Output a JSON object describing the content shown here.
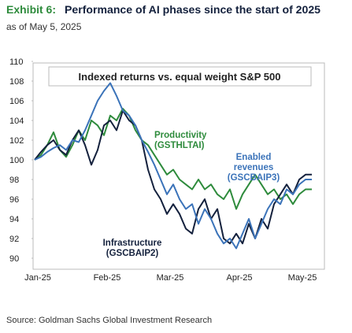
{
  "chart_data": {
    "type": "line",
    "exhibit": "Exhibit 6:",
    "title": "Performance of AI phases since the start of 2025",
    "subtitle": "as of May 5, 2025",
    "inner_title": "Indexed returns vs. equal weight S&P 500",
    "source": "Source: Goldman Sachs Global Investment Research",
    "categories": [
      "Jan-25",
      null,
      null,
      null,
      null,
      null,
      null,
      null,
      null,
      null,
      null,
      "Feb-25",
      null,
      null,
      null,
      null,
      null,
      null,
      null,
      null,
      null,
      "Mar-25",
      null,
      null,
      null,
      null,
      null,
      null,
      null,
      null,
      null,
      null,
      "Apr-25",
      null,
      null,
      null,
      null,
      null,
      null,
      null,
      null,
      null,
      "May-25",
      null,
      null
    ],
    "ylim": [
      90,
      110
    ],
    "yticks": [
      90,
      92,
      94,
      96,
      98,
      100,
      102,
      104,
      106,
      108,
      110
    ],
    "series": [
      {
        "label": [
          "Productivity",
          "(GSTHLTAI)"
        ],
        "color": "#2e8b3c",
        "values": [
          100,
          100.5,
          101.5,
          102.8,
          101,
          100.3,
          101.5,
          103,
          102,
          104,
          103.5,
          102.5,
          104.5,
          104,
          105.2,
          104.5,
          103,
          102,
          101.5,
          100.5,
          99.5,
          98.5,
          99,
          98,
          97.5,
          97,
          98,
          97,
          97.5,
          96.5,
          96,
          97,
          95,
          96.5,
          97.5,
          98.5,
          97.5,
          96.5,
          97,
          96,
          96.5,
          95.5,
          96.5,
          97,
          97
        ]
      },
      {
        "label": [
          "Infrastructure",
          "(GSCBAIP2)"
        ],
        "color": "#14213d",
        "values": [
          100,
          100.8,
          101.5,
          102,
          101,
          100.5,
          102,
          103,
          101.5,
          99.5,
          101,
          103.5,
          104,
          103,
          105,
          104,
          103.5,
          102,
          99,
          97,
          96,
          94.5,
          95.5,
          94.5,
          93,
          92.5,
          95,
          96,
          94,
          95,
          92,
          91.5,
          92.5,
          91.5,
          93.5,
          92,
          94,
          93,
          95.5,
          96.5,
          97.5,
          96.5,
          98,
          98.5,
          98.5
        ]
      },
      {
        "label": [
          "Enabled",
          "revenues",
          "(GSCBAIP3)"
        ],
        "color": "#3b73b9",
        "values": [
          100,
          100.3,
          100.8,
          101.2,
          101.5,
          101,
          102,
          101.8,
          103,
          104.5,
          106,
          107,
          107.8,
          106.5,
          105,
          104.5,
          103.5,
          102,
          100.8,
          99.5,
          98,
          96.5,
          97.5,
          96,
          95,
          95.5,
          93.5,
          95,
          94,
          92.5,
          91.5,
          92,
          91,
          92.5,
          94,
          92,
          93.5,
          95,
          96,
          95.5,
          97,
          96.5,
          97.5,
          98,
          98
        ]
      }
    ]
  }
}
